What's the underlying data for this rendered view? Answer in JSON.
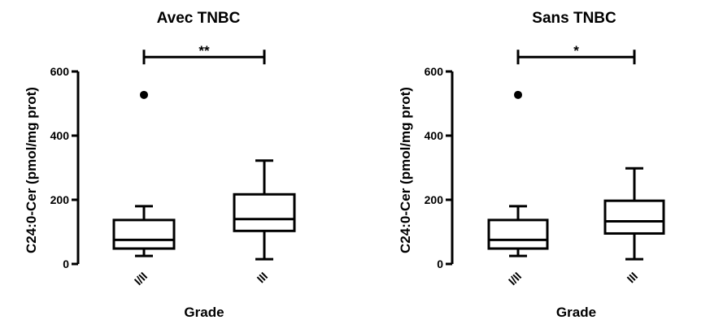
{
  "chart_data": [
    {
      "type": "box",
      "title": "Avec TNBC",
      "xlabel": "Grade",
      "ylabel": "C24:0-Cer (pmol/mg prot)",
      "ylim": [
        0,
        600
      ],
      "yticks": [
        "0",
        "200",
        "400",
        "600"
      ],
      "categories": [
        "I/II",
        "III"
      ],
      "boxes": [
        {
          "category": "I/II",
          "whisker_low": 25,
          "q1": 48,
          "median": 75,
          "q3": 137,
          "whisker_high": 180,
          "outliers": [
            527
          ]
        },
        {
          "category": "III",
          "whisker_low": 15,
          "q1": 103,
          "median": 140,
          "q3": 217,
          "whisker_high": 322,
          "outliers": []
        }
      ],
      "significance": {
        "label": "**",
        "from": "I/II",
        "to": "III",
        "y": 645
      }
    },
    {
      "type": "box",
      "title": "Sans TNBC",
      "xlabel": "Grade",
      "ylabel": "C24:0-Cer (pmol/mg prot)",
      "ylim": [
        0,
        600
      ],
      "yticks": [
        "0",
        "200",
        "400",
        "600"
      ],
      "categories": [
        "I/II",
        "III"
      ],
      "boxes": [
        {
          "category": "I/II",
          "whisker_low": 25,
          "q1": 48,
          "median": 75,
          "q3": 137,
          "whisker_high": 180,
          "outliers": [
            527
          ]
        },
        {
          "category": "III",
          "whisker_low": 15,
          "q1": 95,
          "median": 133,
          "q3": 197,
          "whisker_high": 298,
          "outliers": []
        }
      ],
      "significance": {
        "label": "*",
        "from": "I/II",
        "to": "III",
        "y": 645
      }
    }
  ]
}
